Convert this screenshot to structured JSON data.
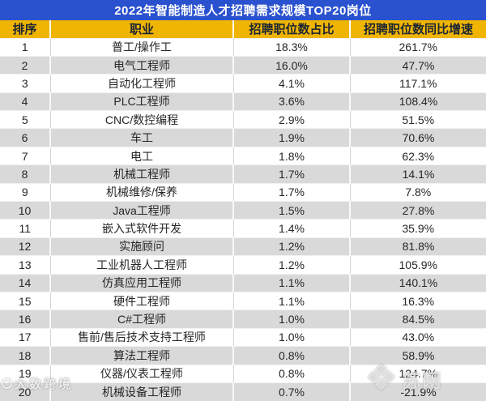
{
  "chart_data": {
    "type": "table",
    "title": "2022年智能制造人才招聘需求规模TOP20岗位",
    "columns": [
      "排序",
      "职业",
      "招聘职位数占比",
      "招聘职位数同比增速"
    ],
    "rows": [
      [
        "1",
        "普工/操作工",
        "18.3%",
        "261.7%"
      ],
      [
        "2",
        "电气工程师",
        "16.0%",
        "47.7%"
      ],
      [
        "3",
        "自动化工程师",
        "4.1%",
        "117.1%"
      ],
      [
        "4",
        "PLC工程师",
        "3.6%",
        "108.4%"
      ],
      [
        "5",
        "CNC/数控编程",
        "2.9%",
        "51.5%"
      ],
      [
        "6",
        "车工",
        "1.9%",
        "70.6%"
      ],
      [
        "7",
        "电工",
        "1.8%",
        "62.3%"
      ],
      [
        "8",
        "机械工程师",
        "1.7%",
        "14.1%"
      ],
      [
        "9",
        "机械维修/保养",
        "1.7%",
        "7.8%"
      ],
      [
        "10",
        "Java工程师",
        "1.5%",
        "27.8%"
      ],
      [
        "11",
        "嵌入式软件开发",
        "1.4%",
        "35.9%"
      ],
      [
        "12",
        "实施顾问",
        "1.2%",
        "81.8%"
      ],
      [
        "13",
        "工业机器人工程师",
        "1.2%",
        "105.9%"
      ],
      [
        "14",
        "仿真应用工程师",
        "1.1%",
        "140.1%"
      ],
      [
        "15",
        "硬件工程师",
        "1.1%",
        "16.3%"
      ],
      [
        "16",
        "C#工程师",
        "1.0%",
        "84.5%"
      ],
      [
        "17",
        "售前/售后技术支持工程师",
        "1.0%",
        "43.0%"
      ],
      [
        "18",
        "算法工程师",
        "0.8%",
        "58.9%"
      ],
      [
        "19",
        "仪器/仪表工程师",
        "0.8%",
        "124.7%"
      ],
      [
        "20",
        "机械设备工程师",
        "0.7%",
        "-21.9%"
      ]
    ],
    "layout": {
      "grid": "on",
      "alternating_rows": true,
      "header_position": "top"
    }
  },
  "watermarks": {
    "bottom_left": "大数跨境",
    "bottom_right": "苏网"
  },
  "colors": {
    "title_bar_blue": "#2a51ce",
    "title_text": "#ffffff",
    "header_yellow": "#f0b502",
    "header_text": "#1d2634",
    "alt_row_gray": "#d9d9d9",
    "body_text": "#262626"
  }
}
